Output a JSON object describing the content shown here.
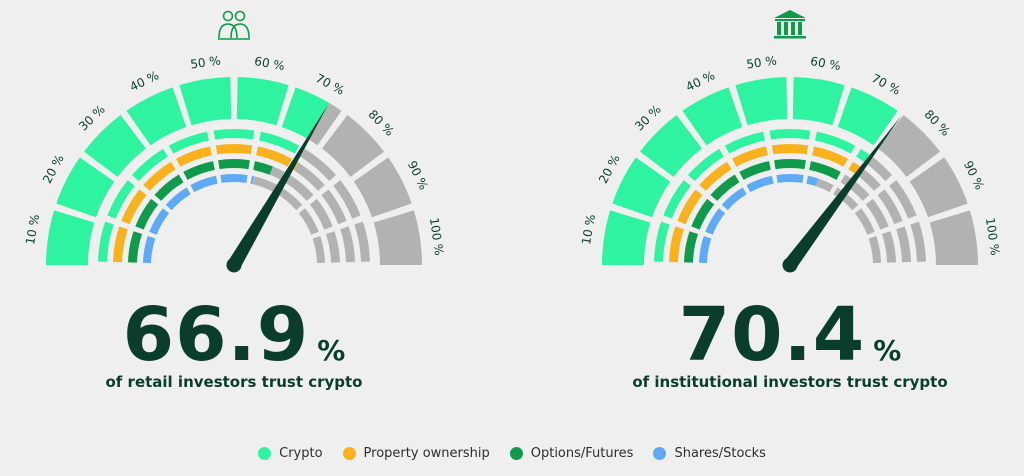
{
  "chart_data": [
    {
      "type": "gauge",
      "icon": "people-group-icon",
      "value": 66.9,
      "value_text": "66.9",
      "unit": "%",
      "caption": "of retail investors trust crypto",
      "ticks": [
        "10 %",
        "20 %",
        "30 %",
        "40 %",
        "50 %",
        "60 %",
        "70 %",
        "80 %",
        "90 %",
        "100 %"
      ],
      "rings": [
        {
          "name": "Crypto",
          "value": 66.9
        },
        {
          "name": "Property ownership",
          "value": 68
        },
        {
          "name": "Options/Futures",
          "value": 62
        },
        {
          "name": "Shares/Stocks",
          "value": 57
        }
      ]
    },
    {
      "type": "gauge",
      "icon": "bank-building-icon",
      "value": 70.4,
      "value_text": "70.4",
      "unit": "%",
      "caption": "of institutional investors trust crypto",
      "ticks": [
        "10 %",
        "20 %",
        "30 %",
        "40 %",
        "50 %",
        "60 %",
        "70 %",
        "80 %",
        "90 %",
        "100 %"
      ],
      "rings": [
        {
          "name": "Crypto",
          "value": 70.4
        },
        {
          "name": "Property ownership",
          "value": 71
        },
        {
          "name": "Options/Futures",
          "value": 66
        },
        {
          "name": "Shares/Stocks",
          "value": 60
        }
      ]
    }
  ],
  "legend": [
    {
      "label": "Crypto",
      "color": "#2ef4a2"
    },
    {
      "label": "Property ownership",
      "color": "#f9b21b"
    },
    {
      "label": "Options/Futures",
      "color": "#0f9a4c"
    },
    {
      "label": "Shares/Stocks",
      "color": "#5eaaf7"
    }
  ],
  "colors": {
    "crypto": "#2ef4a2",
    "property": "#f9b21b",
    "options": "#0f9a4c",
    "shares": "#5eaaf7",
    "inactive": "#b2b2b2",
    "needle": "#0b3d2c",
    "text_dark": "#0b3d2c"
  }
}
